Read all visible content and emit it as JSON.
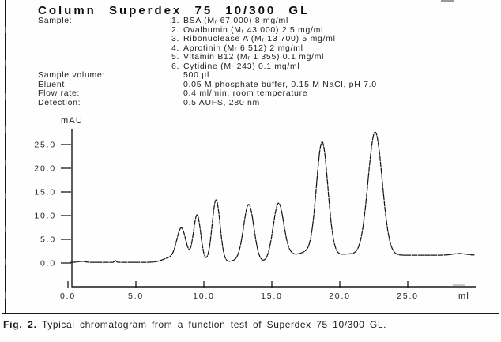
{
  "figure": {
    "title": "Column Superdex 75 10/300 GL",
    "specs": [
      {
        "label": "Sample:",
        "num": "1.",
        "value": "BSA (Mᵣ 67 000) 8 mg/ml"
      },
      {
        "label": "",
        "num": "2.",
        "value": "Ovalbumin (Mᵣ 43 000) 2.5 mg/ml"
      },
      {
        "label": "",
        "num": "3.",
        "value": "Ribonuclease A (Mᵣ 13 700) 5 mg/ml"
      },
      {
        "label": "",
        "num": "4.",
        "value": "Aprotinin (Mᵣ 6 512) 2 mg/ml"
      },
      {
        "label": "",
        "num": "5.",
        "value": "Vitamin B12 (Mᵣ 1 355) 0.1 mg/ml"
      },
      {
        "label": "",
        "num": "6.",
        "value": "Cytidine (Mᵣ 243) 0.1 mg/ml"
      },
      {
        "label": "Sample volume:",
        "num": "",
        "value": "500 µl"
      },
      {
        "label": "Eluent:",
        "num": "",
        "value": "0.05 M phosphate buffer, 0.15 M NaCl, pH 7.0"
      },
      {
        "label": "Flow rate:",
        "num": "",
        "value": "0.4 ml/min, room temperature"
      },
      {
        "label": "Detection:",
        "num": "",
        "value": "0.5 AUFS, 280 nm"
      }
    ],
    "caption": {
      "prefix": "Fig. 2.",
      "text": " Typical chromatogram from a function test of Superdex 75 10/300 GL."
    }
  },
  "chart_data": {
    "type": "line",
    "title": "",
    "xlabel": "ml",
    "ylabel": "mAU",
    "xlim": [
      0,
      29.9
    ],
    "ylim": [
      -5,
      28.3
    ],
    "grid": false,
    "legend": "none",
    "x_tick_values": [
      0,
      5,
      10,
      15,
      20,
      25
    ],
    "x_tick_labels": [
      "0.0",
      "5.0",
      "10.0",
      "15.0",
      "20.0",
      "25.0"
    ],
    "y_tick_values": [
      0,
      5,
      10,
      15,
      20,
      25
    ],
    "y_tick_labels": [
      "0.0",
      "5.0",
      "10.0",
      "15.0",
      "20.0",
      "25.0"
    ],
    "trace_color": "#161616",
    "peaks": [
      {
        "retention_ml": 8.35,
        "height_mau": 7.1,
        "sigma_ml": 0.34
      },
      {
        "retention_ml": 9.5,
        "height_mau": 10.0,
        "sigma_ml": 0.27
      },
      {
        "retention_ml": 10.9,
        "height_mau": 13.2,
        "sigma_ml": 0.29
      },
      {
        "retention_ml": 13.3,
        "height_mau": 12.2,
        "sigma_ml": 0.38
      },
      {
        "retention_ml": 15.5,
        "height_mau": 12.5,
        "sigma_ml": 0.4
      },
      {
        "retention_ml": 18.7,
        "height_mau": 23.9,
        "sigma_ml": 0.42
      },
      {
        "retention_ml": 22.6,
        "height_mau": 26.0,
        "sigma_ml": 0.52
      }
    ],
    "baseline": {
      "level_mau": 0.15,
      "step": {
        "from_ml": 15.7,
        "to_ml": 16.6,
        "rise_mau": 1.5
      },
      "bumps": [
        {
          "c": 1.0,
          "h": 0.2,
          "s": 0.25
        },
        {
          "c": 3.5,
          "h": 0.35,
          "s": 0.07
        },
        {
          "c": 7.45,
          "h": 0.9,
          "s": 0.5
        },
        {
          "c": 12.3,
          "h": 0.3,
          "s": 0.4
        },
        {
          "c": 17.5,
          "h": 0.6,
          "s": 0.45
        },
        {
          "c": 20.7,
          "h": 0.25,
          "s": 0.6
        },
        {
          "c": 28.8,
          "h": 0.35,
          "s": 0.5
        }
      ]
    }
  }
}
